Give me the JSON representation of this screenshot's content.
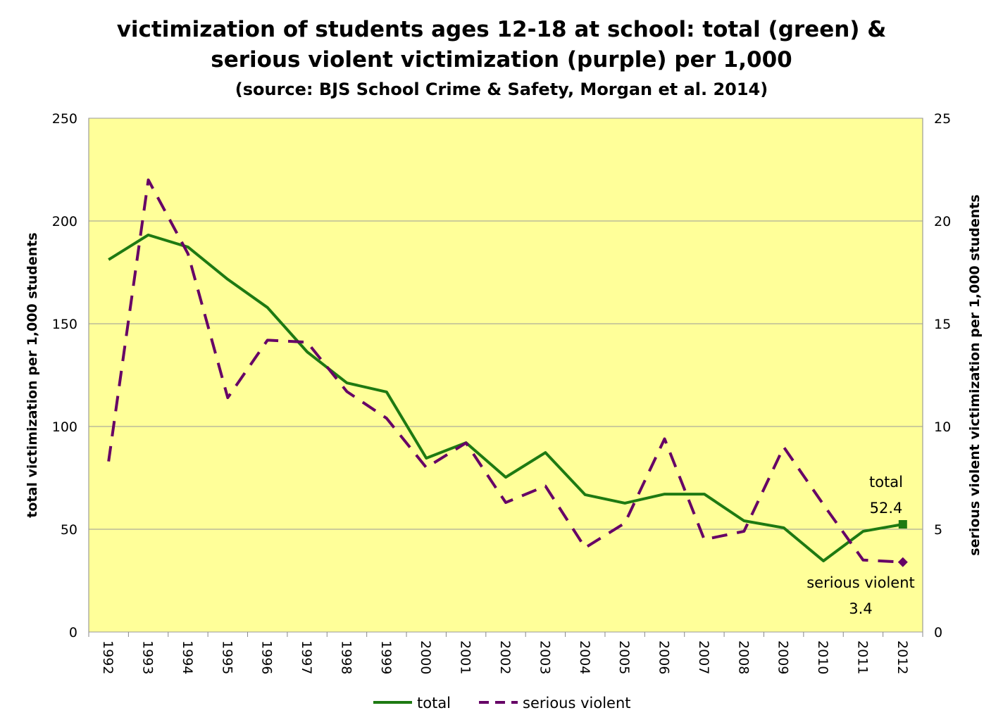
{
  "chart_data": {
    "type": "line",
    "title": "victimization of students ages 12-18 at school: total (green) & serious violent victimization (purple) per 1,000",
    "title_lines": [
      "victimization of students ages 12-18 at school: total (green) &",
      "serious violent victimization (purple) per 1,000"
    ],
    "subtitle": "(source: BJS School Crime & Safety, Morgan et al. 2014)",
    "x": [
      "1992",
      "1993",
      "1994",
      "1995",
      "1996",
      "1997",
      "1998",
      "1999",
      "2000",
      "2001",
      "2002",
      "2003",
      "2004",
      "2005",
      "2006",
      "2007",
      "2008",
      "2009",
      "2010",
      "2011",
      "2012"
    ],
    "ylabel": "total victimization per 1,000 students",
    "y2label": "serious violent victimization per 1,000 students",
    "ylim": [
      0,
      250
    ],
    "y2lim": [
      0,
      25
    ],
    "yticks": [
      0,
      50,
      100,
      150,
      200,
      250
    ],
    "y2ticks": [
      0,
      5,
      10,
      15,
      20,
      25
    ],
    "grid": true,
    "legend_position": "bottom",
    "background_color": "#ffff99",
    "series": [
      {
        "name": "total",
        "axis": "left",
        "color": "#1e7a12",
        "dash": false,
        "values": [
          181.2,
          193.2,
          187.3,
          171.6,
          157.9,
          136.3,
          121.2,
          116.8,
          84.6,
          92.1,
          75.3,
          87.3,
          66.8,
          62.7,
          67.1,
          67.1,
          54.1,
          50.7,
          34.6,
          49.0,
          52.4
        ]
      },
      {
        "name": "serious violent",
        "axis": "right",
        "color": "#660066",
        "dash": true,
        "values": [
          8.3,
          22.0,
          18.4,
          11.4,
          14.2,
          14.1,
          11.7,
          10.4,
          8.0,
          9.2,
          6.3,
          7.1,
          4.1,
          5.3,
          9.4,
          4.5,
          4.9,
          9.0,
          6.2,
          3.5,
          3.4
        ]
      }
    ],
    "annotations": {
      "total_label": "total",
      "total_value": "52.4",
      "violent_label": "serious violent",
      "violent_value": "3.4"
    }
  }
}
